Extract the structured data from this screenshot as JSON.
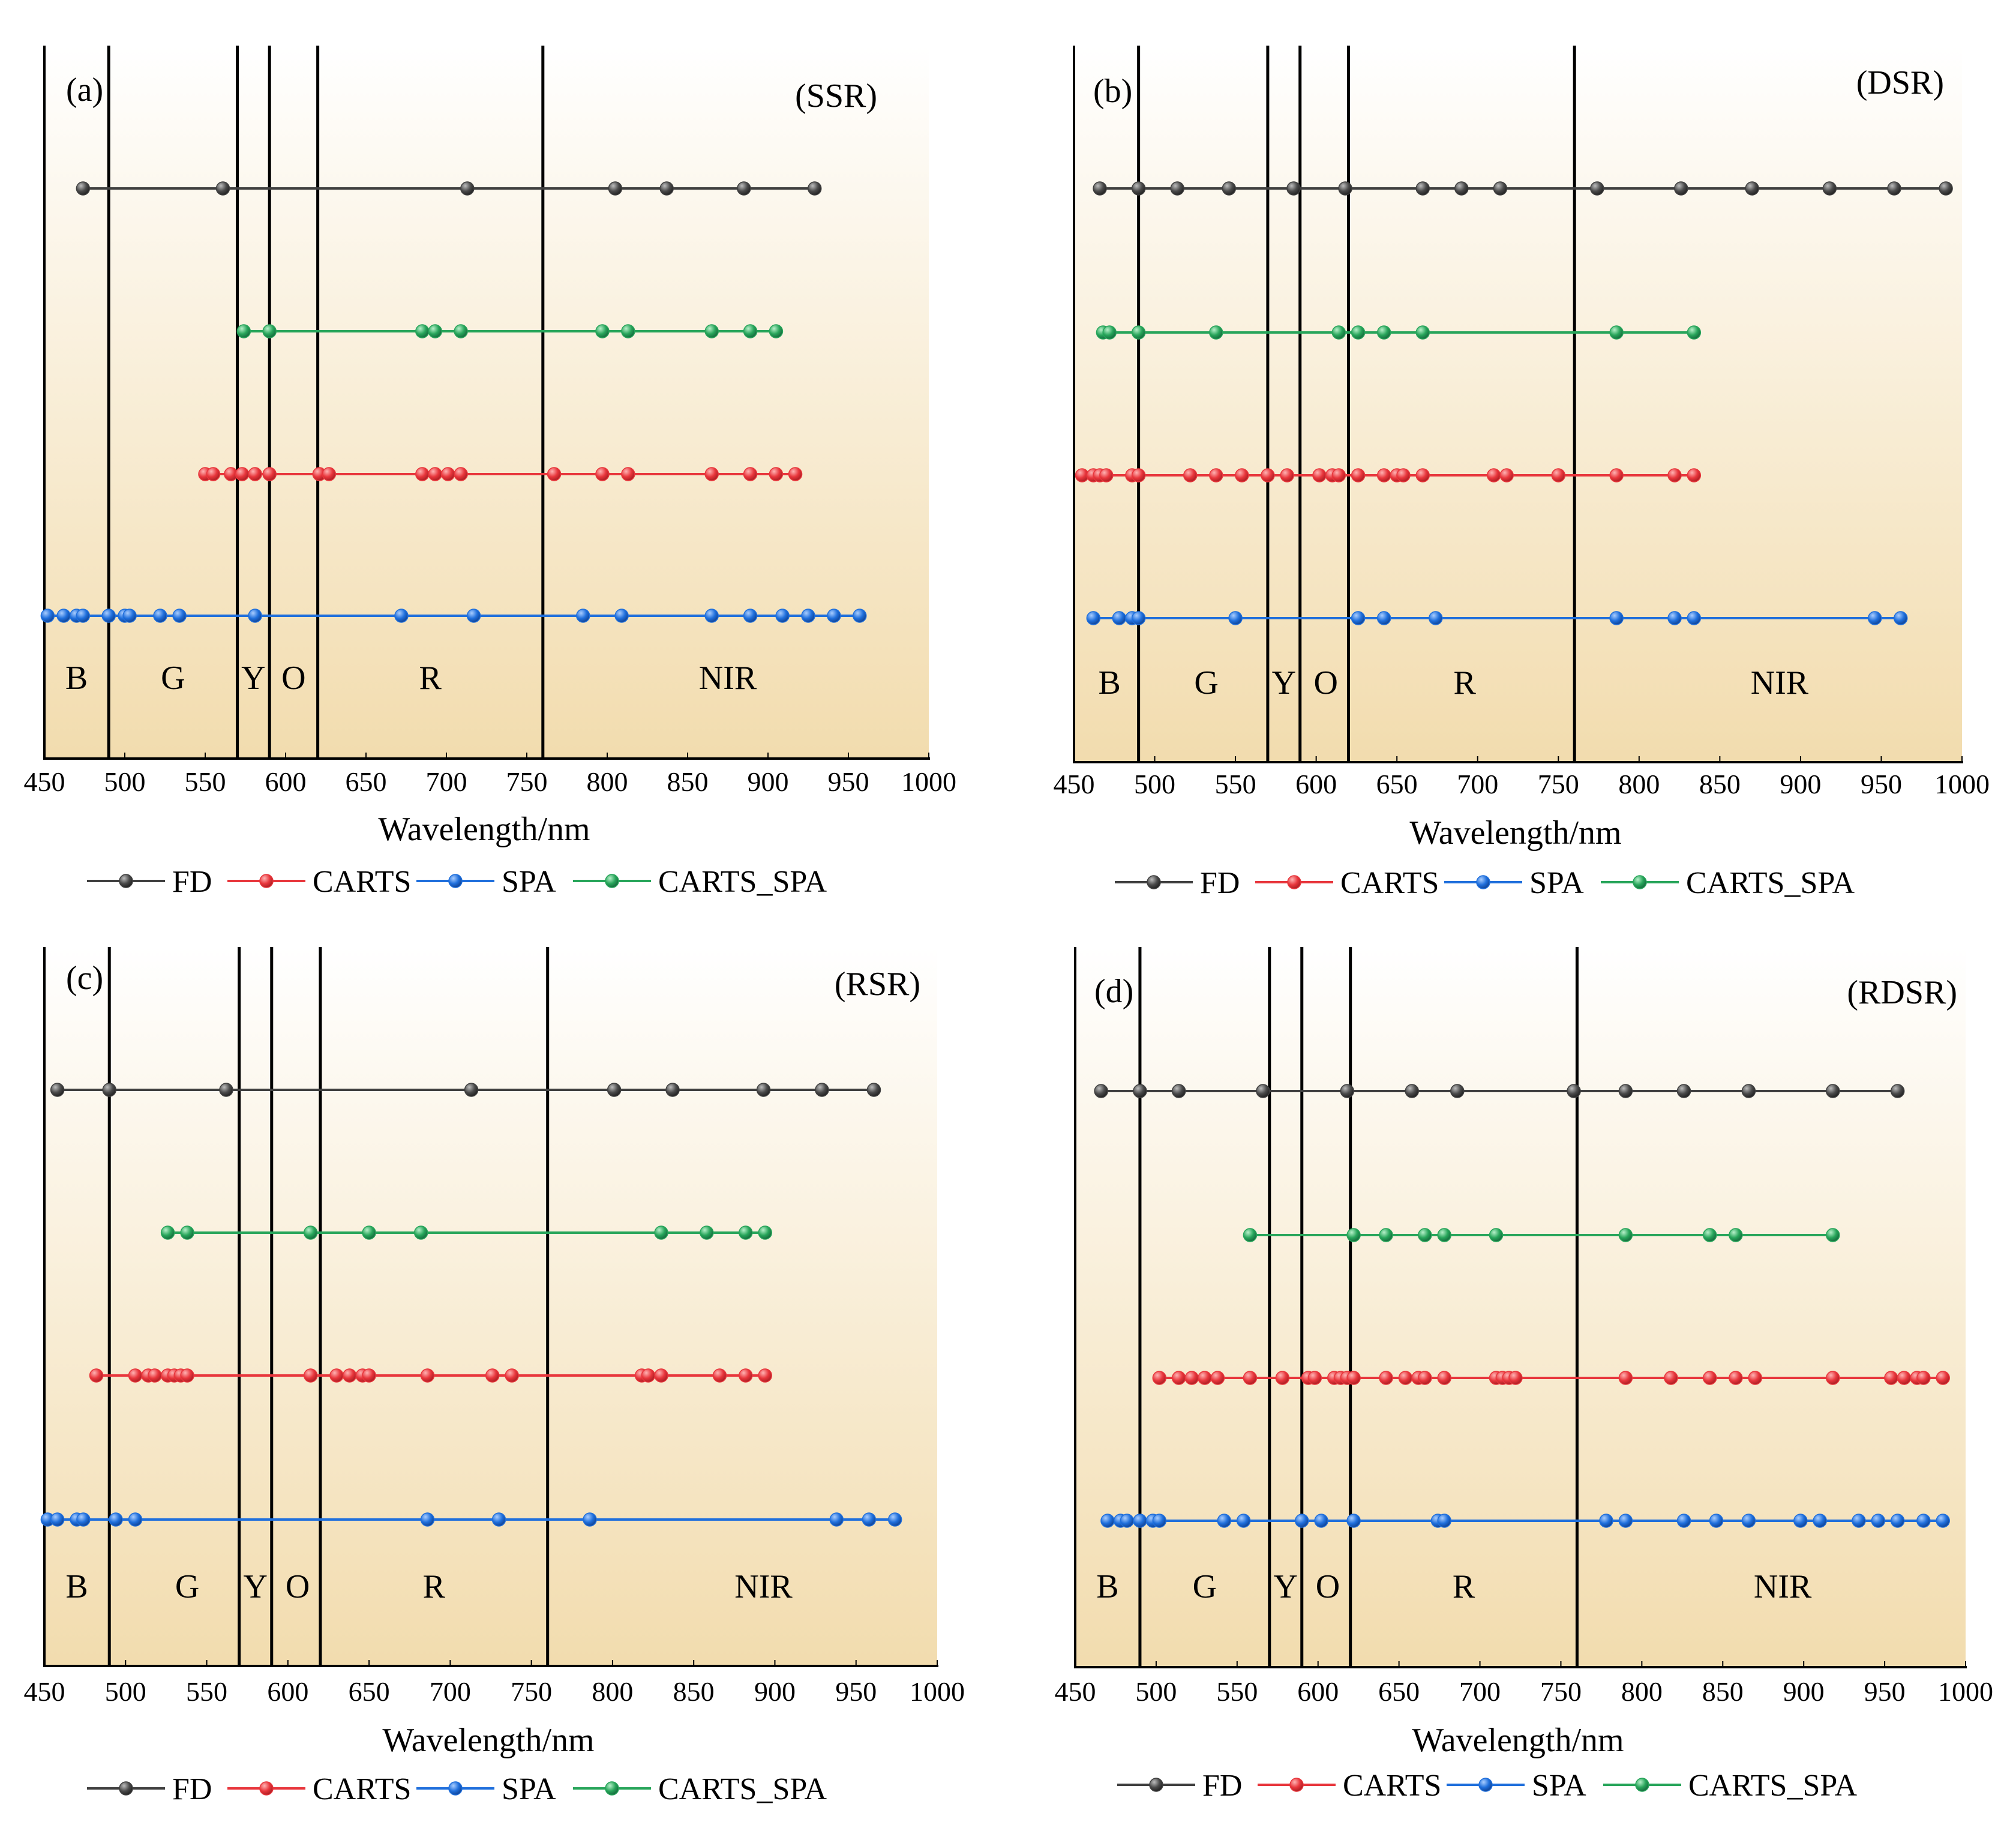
{
  "chart_data": [
    {
      "type": "scatter",
      "panel_label": "(a)",
      "title": "(SSR)",
      "xlabel": "Wavelength/nm",
      "ylabel": "",
      "xlim": [
        450,
        1000
      ],
      "xticks": [
        "450",
        "500",
        "550",
        "600",
        "650",
        "700",
        "750",
        "800",
        "850",
        "900",
        "950",
        "1000"
      ],
      "band_boundaries": [
        490,
        570,
        590,
        620,
        760
      ],
      "band_labels": [
        {
          "label": "B",
          "x": 470
        },
        {
          "label": "G",
          "x": 530
        },
        {
          "label": "Y",
          "x": 580
        },
        {
          "label": "O",
          "x": 605
        },
        {
          "label": "R",
          "x": 690
        },
        {
          "label": "NIR",
          "x": 875
        }
      ],
      "series": [
        {
          "name": "FD",
          "values": [
            474,
            561,
            713,
            805,
            837,
            885,
            929
          ]
        },
        {
          "name": "CARTS_SPA",
          "values": [
            574,
            590,
            685,
            693,
            709,
            797,
            813,
            865,
            889,
            905
          ]
        },
        {
          "name": "CARTS",
          "values": [
            550,
            555,
            566,
            573,
            581,
            590,
            621,
            627,
            685,
            693,
            701,
            709,
            767,
            797,
            813,
            865,
            889,
            905,
            917
          ]
        },
        {
          "name": "SPA",
          "values": [
            452,
            462,
            470,
            474,
            490,
            500,
            503,
            522,
            534,
            581,
            672,
            717,
            785,
            809,
            865,
            889,
            909,
            925,
            941,
            957
          ]
        }
      ]
    },
    {
      "type": "scatter",
      "panel_label": "(b)",
      "title": "(DSR)",
      "xlabel": "Wavelength/nm",
      "ylabel": "",
      "xlim": [
        450,
        1000
      ],
      "xticks": [
        "450",
        "500",
        "550",
        "600",
        "650",
        "700",
        "750",
        "800",
        "850",
        "900",
        "950",
        "1000"
      ],
      "band_boundaries": [
        490,
        570,
        590,
        620,
        760
      ],
      "band_labels": [
        {
          "label": "B",
          "x": 472
        },
        {
          "label": "G",
          "x": 532
        },
        {
          "label": "Y",
          "x": 580
        },
        {
          "label": "O",
          "x": 606
        },
        {
          "label": "R",
          "x": 692
        },
        {
          "label": "NIR",
          "x": 887
        }
      ],
      "series": [
        {
          "name": "FD",
          "values": [
            466,
            490,
            514,
            546,
            586,
            618,
            666,
            690,
            714,
            774,
            826,
            870,
            918,
            958,
            990
          ]
        },
        {
          "name": "CARTS_SPA",
          "values": [
            468,
            472,
            490,
            538,
            614,
            626,
            642,
            666,
            786,
            834
          ]
        },
        {
          "name": "CARTS",
          "values": [
            455,
            462,
            466,
            470,
            486,
            490,
            522,
            538,
            554,
            570,
            582,
            602,
            610,
            614,
            626,
            642,
            650,
            654,
            666,
            710,
            718,
            750,
            786,
            822,
            834
          ]
        },
        {
          "name": "SPA",
          "values": [
            462,
            478,
            486,
            490,
            550,
            626,
            642,
            674,
            786,
            822,
            834,
            946,
            962
          ]
        }
      ]
    },
    {
      "type": "scatter",
      "panel_label": "(c)",
      "title": "(RSR)",
      "xlabel": "Wavelength/nm",
      "ylabel": "",
      "xlim": [
        450,
        1000
      ],
      "xticks": [
        "450",
        "500",
        "550",
        "600",
        "650",
        "700",
        "750",
        "800",
        "850",
        "900",
        "950",
        "1000"
      ],
      "band_boundaries": [
        490,
        570,
        590,
        620,
        760
      ],
      "band_labels": [
        {
          "label": "B",
          "x": 470
        },
        {
          "label": "G",
          "x": 538
        },
        {
          "label": "Y",
          "x": 580
        },
        {
          "label": "O",
          "x": 606
        },
        {
          "label": "R",
          "x": 690
        },
        {
          "label": "NIR",
          "x": 893
        }
      ],
      "series": [
        {
          "name": "FD",
          "values": [
            458,
            490,
            562,
            713,
            801,
            837,
            893,
            929,
            961
          ]
        },
        {
          "name": "CARTS_SPA",
          "values": [
            526,
            538,
            614,
            650,
            682,
            830,
            858,
            882,
            894
          ]
        },
        {
          "name": "CARTS",
          "values": [
            482,
            506,
            514,
            518,
            526,
            530,
            534,
            538,
            614,
            630,
            638,
            646,
            650,
            686,
            726,
            738,
            818,
            822,
            830,
            866,
            882,
            894
          ]
        },
        {
          "name": "SPA",
          "values": [
            452,
            458,
            470,
            474,
            494,
            506,
            686,
            730,
            786,
            938,
            958,
            974
          ]
        }
      ]
    },
    {
      "type": "scatter",
      "panel_label": "(d)",
      "title": "(RDSR)",
      "xlabel": "Wavelength/nm",
      "ylabel": "",
      "xlim": [
        450,
        1000
      ],
      "xticks": [
        "450",
        "500",
        "550",
        "600",
        "650",
        "700",
        "750",
        "800",
        "850",
        "900",
        "950",
        "1000"
      ],
      "band_boundaries": [
        490,
        570,
        590,
        620,
        760
      ],
      "band_labels": [
        {
          "label": "B",
          "x": 470
        },
        {
          "label": "G",
          "x": 530
        },
        {
          "label": "Y",
          "x": 580
        },
        {
          "label": "O",
          "x": 606
        },
        {
          "label": "R",
          "x": 690
        },
        {
          "label": "NIR",
          "x": 887
        }
      ],
      "series": [
        {
          "name": "FD",
          "values": [
            466,
            490,
            514,
            566,
            618,
            658,
            686,
            758,
            790,
            826,
            866,
            918,
            958
          ]
        },
        {
          "name": "CARTS_SPA",
          "values": [
            558,
            622,
            642,
            666,
            678,
            710,
            790,
            842,
            858,
            918
          ]
        },
        {
          "name": "CARTS",
          "values": [
            502,
            514,
            522,
            530,
            538,
            558,
            578,
            594,
            598,
            610,
            614,
            618,
            622,
            642,
            654,
            662,
            666,
            678,
            710,
            714,
            718,
            722,
            790,
            818,
            842,
            858,
            870,
            918,
            954,
            962,
            970,
            974,
            986
          ]
        },
        {
          "name": "SPA",
          "values": [
            470,
            478,
            482,
            490,
            498,
            502,
            542,
            554,
            590,
            602,
            622,
            674,
            678,
            778,
            790,
            826,
            846,
            866,
            898,
            910,
            934,
            946,
            958,
            974,
            986
          ]
        }
      ]
    }
  ],
  "legend": {
    "items": [
      {
        "name": "FD",
        "color": "#3f3f3f"
      },
      {
        "name": "CARTS",
        "color": "#e8363c"
      },
      {
        "name": "SPA",
        "color": "#1f6fdc"
      },
      {
        "name": "CARTS_SPA",
        "color": "#27a55a"
      }
    ]
  },
  "colors": {
    "FD": "#3f3f3f",
    "CARTS": "#e8363c",
    "SPA": "#1f6fdc",
    "CARTS_SPA": "#27a55a",
    "gradient_top": "#ffffff",
    "gradient_bottom": "#f2dcae"
  }
}
